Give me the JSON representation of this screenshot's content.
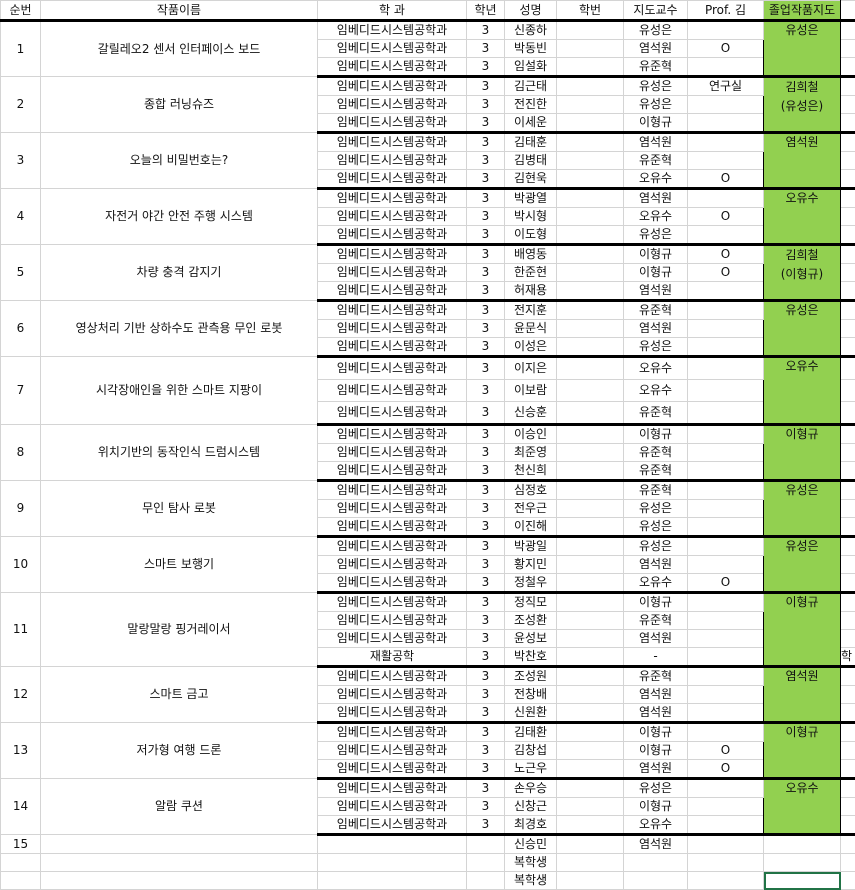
{
  "headers": [
    "순번",
    "작품이름",
    "학 과",
    "학년",
    "성명",
    "학번",
    "지도교수",
    "Prof. 김",
    "졸업작품지도"
  ],
  "colors": {
    "advisor_fill": "#92d050",
    "selection": "#217346"
  },
  "groups": [
    {
      "no": "1",
      "title": "갈릴레오2 센서 인터페이스 보드",
      "advisor": "유성은",
      "members": [
        {
          "dept": "임베디드시스템공학과",
          "year": "3",
          "name": "신종하",
          "prof": "유성은",
          "kim": ""
        },
        {
          "dept": "임베디드시스템공학과",
          "year": "3",
          "name": "박동빈",
          "prof": "염석원",
          "kim": "O"
        },
        {
          "dept": "임베디드시스템공학과",
          "year": "3",
          "name": "임설화",
          "prof": "유준혁",
          "kim": ""
        }
      ]
    },
    {
      "no": "2",
      "title": "종합 러닝슈즈",
      "advisor": "김희철\n(유성은)",
      "members": [
        {
          "dept": "임베디드시스템공학과",
          "year": "3",
          "name": "김근태",
          "prof": "유성은",
          "kim": "연구실"
        },
        {
          "dept": "임베디드시스템공학과",
          "year": "3",
          "name": "전진한",
          "prof": "유성은",
          "kim": ""
        },
        {
          "dept": "임베디드시스템공학과",
          "year": "3",
          "name": "이세운",
          "prof": "이형규",
          "kim": ""
        }
      ]
    },
    {
      "no": "3",
      "title": "오늘의 비밀번호는?",
      "advisor": "염석원",
      "members": [
        {
          "dept": "임베디드시스템공학과",
          "year": "3",
          "name": "김태훈",
          "prof": "염석원",
          "kim": ""
        },
        {
          "dept": "임베디드시스템공학과",
          "year": "3",
          "name": "김병태",
          "prof": "유준혁",
          "kim": ""
        },
        {
          "dept": "임베디드시스템공학과",
          "year": "3",
          "name": "김현욱",
          "prof": "오유수",
          "kim": "O"
        }
      ]
    },
    {
      "no": "4",
      "title": "자전거 야간 안전 주행 시스템",
      "advisor": "오유수",
      "members": [
        {
          "dept": "임베디드시스템공학과",
          "year": "3",
          "name": "박광열",
          "prof": "염석원",
          "kim": ""
        },
        {
          "dept": "임베디드시스템공학과",
          "year": "3",
          "name": "박시형",
          "prof": "오유수",
          "kim": "O"
        },
        {
          "dept": "임베디드시스템공학과",
          "year": "3",
          "name": "이도형",
          "prof": "유성은",
          "kim": ""
        }
      ]
    },
    {
      "no": "5",
      "title": "차량 충격 감지기",
      "advisor": "김희철\n(이형규)",
      "members": [
        {
          "dept": "임베디드시스템공학과",
          "year": "3",
          "name": "배영동",
          "prof": "이형규",
          "kim": "O"
        },
        {
          "dept": "임베디드시스템공학과",
          "year": "3",
          "name": "한준현",
          "prof": "이형규",
          "kim": "O"
        },
        {
          "dept": "임베디드시스템공학과",
          "year": "3",
          "name": "허재용",
          "prof": "염석원",
          "kim": ""
        }
      ]
    },
    {
      "no": "6",
      "title": "영상처리 기반 상하수도 관측용 무인 로봇",
      "advisor": "유성은",
      "members": [
        {
          "dept": "임베디드시스템공학과",
          "year": "3",
          "name": "전지훈",
          "prof": "유준혁",
          "kim": ""
        },
        {
          "dept": "임베디드시스템공학과",
          "year": "3",
          "name": "윤문식",
          "prof": "염석원",
          "kim": ""
        },
        {
          "dept": "임베디드시스템공학과",
          "year": "3",
          "name": "이성은",
          "prof": "유성은",
          "kim": ""
        }
      ]
    },
    {
      "no": "7",
      "title": "시각장애인을 위한 스마트 지팡이",
      "advisor": "오유수",
      "tall": true,
      "members": [
        {
          "dept": "임베디드시스템공학과",
          "year": "3",
          "name": "이지은",
          "prof": "오유수",
          "kim": ""
        },
        {
          "dept": "임베디드시스템공학과",
          "year": "3",
          "name": "이보람",
          "prof": "오유수",
          "kim": ""
        },
        {
          "dept": "임베디드시스템공학과",
          "year": "3",
          "name": "신승훈",
          "prof": "유준혁",
          "kim": ""
        }
      ]
    },
    {
      "no": "8",
      "title": "위치기반의 동작인식 드럼시스템",
      "advisor": "이형규",
      "members": [
        {
          "dept": "임베디드시스템공학과",
          "year": "3",
          "name": "이승인",
          "prof": "이형규",
          "kim": ""
        },
        {
          "dept": "임베디드시스템공학과",
          "year": "3",
          "name": "최준영",
          "prof": "유준혁",
          "kim": ""
        },
        {
          "dept": "임베디드시스템공학과",
          "year": "3",
          "name": "천신희",
          "prof": "유준혁",
          "kim": ""
        }
      ]
    },
    {
      "no": "9",
      "title": "무인 탐사 로봇",
      "advisor": "유성은",
      "members": [
        {
          "dept": "임베디드시스템공학과",
          "year": "3",
          "name": "심정호",
          "prof": "유준혁",
          "kim": ""
        },
        {
          "dept": "임베디드시스템공학과",
          "year": "3",
          "name": "전우근",
          "prof": "유성은",
          "kim": ""
        },
        {
          "dept": "임베디드시스템공학과",
          "year": "3",
          "name": "이진해",
          "prof": "유성은",
          "kim": ""
        }
      ]
    },
    {
      "no": "10",
      "title": "스마트 보행기",
      "advisor": "유성은",
      "members": [
        {
          "dept": "임베디드시스템공학과",
          "year": "3",
          "name": "박광일",
          "prof": "유성은",
          "kim": ""
        },
        {
          "dept": "임베디드시스템공학과",
          "year": "3",
          "name": "황지민",
          "prof": "염석원",
          "kim": ""
        },
        {
          "dept": "임베디드시스템공학과",
          "year": "3",
          "name": "정철우",
          "prof": "오유수",
          "kim": "O"
        }
      ]
    },
    {
      "no": "11",
      "title": "말랑말랑 핑거레이서",
      "advisor": "이형규",
      "members": [
        {
          "dept": "임베디드시스템공학과",
          "year": "3",
          "name": "정직모",
          "prof": "이형규",
          "kim": ""
        },
        {
          "dept": "임베디드시스템공학과",
          "year": "3",
          "name": "조성환",
          "prof": "유준혁",
          "kim": ""
        },
        {
          "dept": "임베디드시스템공학과",
          "year": "3",
          "name": "윤성보",
          "prof": "염석원",
          "kim": ""
        },
        {
          "dept": "재활공학",
          "year": "3",
          "name": "박찬호",
          "prof": "-",
          "kim": "",
          "extra": "학"
        }
      ]
    },
    {
      "no": "12",
      "title": "스마트 금고",
      "advisor": "염석원",
      "members": [
        {
          "dept": "임베디드시스템공학과",
          "year": "3",
          "name": "조성원",
          "prof": "유준혁",
          "kim": ""
        },
        {
          "dept": "임베디드시스템공학과",
          "year": "3",
          "name": "전창배",
          "prof": "염석원",
          "kim": ""
        },
        {
          "dept": "임베디드시스템공학과",
          "year": "3",
          "name": "신원환",
          "prof": "염석원",
          "kim": ""
        }
      ]
    },
    {
      "no": "13",
      "title": "저가형 여행 드론",
      "advisor": "이형규",
      "members": [
        {
          "dept": "임베디드시스템공학과",
          "year": "3",
          "name": "김태환",
          "prof": "이형규",
          "kim": ""
        },
        {
          "dept": "임베디드시스템공학과",
          "year": "3",
          "name": "김창섭",
          "prof": "이형규",
          "kim": "O"
        },
        {
          "dept": "임베디드시스템공학과",
          "year": "3",
          "name": "노근우",
          "prof": "염석원",
          "kim": "O"
        }
      ]
    },
    {
      "no": "14",
      "title": "알람 쿠션",
      "advisor": "오유수",
      "members": [
        {
          "dept": "임베디드시스템공학과",
          "year": "3",
          "name": "손우승",
          "prof": "유성은",
          "kim": ""
        },
        {
          "dept": "임베디드시스템공학과",
          "year": "3",
          "name": "신창근",
          "prof": "이형규",
          "kim": ""
        },
        {
          "dept": "임베디드시스템공학과",
          "year": "3",
          "name": "최경호",
          "prof": "오유수",
          "kim": ""
        }
      ]
    }
  ],
  "trailing_rows": [
    {
      "no": "15",
      "name": "신승민",
      "prof": "염석원"
    },
    {
      "no": "",
      "name": "복학생",
      "prof": ""
    },
    {
      "no": "",
      "name": "복학생",
      "prof": ""
    }
  ]
}
